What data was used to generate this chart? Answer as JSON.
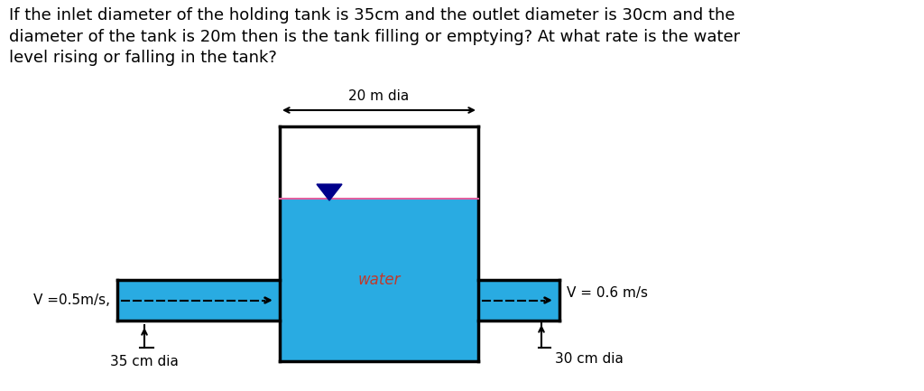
{
  "title_text": "If the inlet diameter of the holding tank is 35cm and the outlet diameter is 30cm and the\ndiameter of the tank is 20m then is the tank filling or emptying? At what rate is the water\nlevel rising or falling in the tank?",
  "title_fontsize": 13.0,
  "water_color": "#29ABE2",
  "water_label": "water",
  "water_label_color": "#C0392B",
  "water_label_fontsize": 12,
  "dim_label_20m": "20 m dia",
  "dim_label_35cm": "35 cm dia",
  "dim_label_30cm": "30 cm dia",
  "v_inlet": "V =0.5m/s,",
  "v_outlet": "V = 0.6 m/s",
  "background_color": "#ffffff",
  "water_surface_color": "#E060A0",
  "triangle_color": "#00008B",
  "line_color": "#000000",
  "lw": 2.5
}
